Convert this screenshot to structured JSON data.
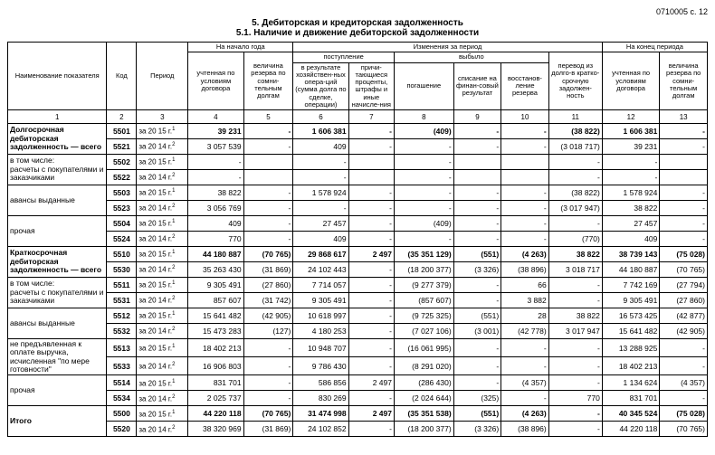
{
  "page_ref": "0710005 с. 12",
  "heading": "5. Дебиторская и кредиторская задолженность",
  "subheading": "5.1. Наличие и движение дебиторской задолженности",
  "header": {
    "h1": "Наименование показателя",
    "h2": "Код",
    "h3": "Период",
    "group_start": "На начало года",
    "group_change": "Изменения за период",
    "group_end": "На конец периода",
    "sub_in": "поступление",
    "sub_out": "выбыло",
    "c4": "учтенная по условиям договора",
    "c5": "величина резерва по сомни-тельным долгам",
    "c6": "в результате хозяйствен-ных опера-ций (сумма долга по сделке, операции)",
    "c7": "причи-тающиеся проценты, штрафы и иные начисле-ния",
    "c8": "погашение",
    "c9": "списание на финан-совый результат",
    "c10": "восстанов-ление резерва",
    "c11": "перевод из долго-в кратко-срочную задолжен-ность",
    "c12": "учтенная по условиям договора",
    "c13": "величина резерва по сомни-тельным долгам"
  },
  "colnums": [
    "1",
    "2",
    "3",
    "4",
    "5",
    "6",
    "7",
    "8",
    "9",
    "10",
    "11",
    "12",
    "13"
  ],
  "rows": [
    {
      "name": "Долгосрочная дебиторская задолженность — всего",
      "bold": true,
      "span": 2,
      "code": "5501",
      "period": "за 20 15  г.",
      "c4": "39 231",
      "c5": "-",
      "c6": "1 606 381",
      "c7": "-",
      "c8": "(409)",
      "c9": "-",
      "c10": "-",
      "c11": "(38 822)",
      "c12": "1 606 381",
      "c13": "-"
    },
    {
      "code": "5521",
      "period": "за 20 14  г.",
      "c4": "3 057 539",
      "c5": "-",
      "c6": "409",
      "c7": "-",
      "c8": "-",
      "c9": "-",
      "c10": "-",
      "c11": "(3 018 717)",
      "c12": "39 231",
      "c13": "-"
    },
    {
      "name": "в том числе:\nрасчеты с покупателями и заказчиками",
      "span": 2,
      "code": "5502",
      "period": "за 20 15  г.",
      "c4": "-",
      "c5": "",
      "c6": "-",
      "c7": "",
      "c8": "-",
      "c9": "",
      "c10": "",
      "c11": "-",
      "c12": "-",
      "c13": ""
    },
    {
      "code": "5522",
      "period": "за 20 14  г.",
      "c4": "-",
      "c5": "",
      "c6": "-",
      "c7": "",
      "c8": "-",
      "c9": "",
      "c10": "",
      "c11": "-",
      "c12": "-",
      "c13": ""
    },
    {
      "name": "авансы выданные",
      "span": 2,
      "code": "5503",
      "period": "за 20 15  г.",
      "c4": "38 822",
      "c5": "-",
      "c6": "1 578 924",
      "c7": "-",
      "c8": "-",
      "c9": "-",
      "c10": "-",
      "c11": "(38 822)",
      "c12": "1 578 924",
      "c13": "-"
    },
    {
      "code": "5523",
      "period": "за 20 14  г.",
      "c4": "3 056 769",
      "c5": "-",
      "c6": "-",
      "c7": "-",
      "c8": "-",
      "c9": "-",
      "c10": "-",
      "c11": "(3 017 947)",
      "c12": "38 822",
      "c13": "-"
    },
    {
      "name": "прочая",
      "span": 2,
      "code": "5504",
      "period": "за 20 15  г.",
      "c4": "409",
      "c5": "-",
      "c6": "27 457",
      "c7": "-",
      "c8": "(409)",
      "c9": "-",
      "c10": "-",
      "c11": "-",
      "c12": "27 457",
      "c13": "-"
    },
    {
      "code": "5524",
      "period": "за 20 14  г.",
      "c4": "770",
      "c5": "-",
      "c6": "409",
      "c7": "-",
      "c8": "-",
      "c9": "-",
      "c10": "-",
      "c11": "(770)",
      "c12": "409",
      "c13": "-"
    },
    {
      "name": "Краткосрочная дебиторская задолженность — всего",
      "bold": true,
      "span": 2,
      "code": "5510",
      "period": "за 20 15  г.",
      "c4": "44 180 887",
      "c5": "(70 765)",
      "c6": "29 868 617",
      "c7": "2 497",
      "c8": "(35 351 129)",
      "c9": "(551)",
      "c10": "(4 263)",
      "c11": "38 822",
      "c12": "38 739 143",
      "c13": "(75 028)"
    },
    {
      "code": "5530",
      "period": "за 20 14  г.",
      "c4": "35 263 430",
      "c5": "(31 869)",
      "c6": "24 102 443",
      "c7": "-",
      "c8": "(18 200 377)",
      "c9": "(3 326)",
      "c10": "(38 896)",
      "c11": "3 018 717",
      "c12": "44 180 887",
      "c13": "(70 765)"
    },
    {
      "name": "в том числе:\nрасчеты с покупателями и заказчиками",
      "span": 2,
      "code": "5511",
      "period": "за 20 15  г.",
      "c4": "9 305 491",
      "c5": "(27 860)",
      "c6": "7 714 057",
      "c7": "-",
      "c8": "(9 277 379)",
      "c9": "-",
      "c10": "66",
      "c11": "-",
      "c12": "7 742 169",
      "c13": "(27 794)"
    },
    {
      "code": "5531",
      "period": "за 20 14  г.",
      "c4": "857 607",
      "c5": "(31 742)",
      "c6": "9 305 491",
      "c7": "-",
      "c8": "(857 607)",
      "c9": "-",
      "c10": "3 882",
      "c11": "-",
      "c12": "9 305 491",
      "c13": "(27 860)"
    },
    {
      "name": "авансы выданные",
      "span": 2,
      "code": "5512",
      "period": "за 20 15  г.",
      "c4": "15 641 482",
      "c5": "(42 905)",
      "c6": "10 618 997",
      "c7": "-",
      "c8": "(9 725 325)",
      "c9": "(551)",
      "c10": "28",
      "c11": "38 822",
      "c12": "16 573 425",
      "c13": "(42 877)"
    },
    {
      "code": "5532",
      "period": "за 20 14  г.",
      "c4": "15 473 283",
      "c5": "(127)",
      "c6": "4 180 253",
      "c7": "-",
      "c8": "(7 027 106)",
      "c9": "(3 001)",
      "c10": "(42 778)",
      "c11": "3 017 947",
      "c12": "15 641 482",
      "c13": "(42 905)"
    },
    {
      "name": "не предъявленная к оплате выручка, исчисленная \"по мере готовности\"",
      "span": 2,
      "code": "5513",
      "period": "за 20 15  г.",
      "c4": "18 402 213",
      "c5": "-",
      "c6": "10 948 707",
      "c7": "-",
      "c8": "(16 061 995)",
      "c9": "-",
      "c10": "-",
      "c11": "-",
      "c12": "13 288 925",
      "c13": "-"
    },
    {
      "code": "5533",
      "period": "за 20 14  г.",
      "c4": "16 906 803",
      "c5": "-",
      "c6": "9 786 430",
      "c7": "-",
      "c8": "(8 291 020)",
      "c9": "-",
      "c10": "-",
      "c11": "-",
      "c12": "18 402 213",
      "c13": "-"
    },
    {
      "name": "прочая",
      "span": 2,
      "code": "5514",
      "period": "за 20 15  г.",
      "c4": "831 701",
      "c5": "-",
      "c6": "586 856",
      "c7": "2 497",
      "c8": "(286 430)",
      "c9": "-",
      "c10": "(4 357)",
      "c11": "-",
      "c12": "1 134 624",
      "c13": "(4 357)"
    },
    {
      "code": "5534",
      "period": "за 20 14  г.",
      "c4": "2 025 737",
      "c5": "-",
      "c6": "830 269",
      "c7": "-",
      "c8": "(2 024 644)",
      "c9": "(325)",
      "c10": "-",
      "c11": "770",
      "c12": "831 701",
      "c13": "-"
    },
    {
      "name": "Итого",
      "bold": true,
      "span": 2,
      "code": "5500",
      "period": "за 20 15  г.",
      "c4": "44 220 118",
      "c5": "(70 765)",
      "c6": "31 474 998",
      "c7": "2 497",
      "c8": "(35 351 538)",
      "c9": "(551)",
      "c10": "(4 263)",
      "c11": "-",
      "c12": "40 345 524",
      "c13": "(75 028)"
    },
    {
      "code": "5520",
      "period": "за 20 14  г.",
      "c4": "38 320 969",
      "c5": "(31 869)",
      "c6": "24 102 852",
      "c7": "-",
      "c8": "(18 200 377)",
      "c9": "(3 326)",
      "c10": "(38 896)",
      "c11": "-",
      "c12": "44 220 118",
      "c13": "(70 765)"
    }
  ]
}
